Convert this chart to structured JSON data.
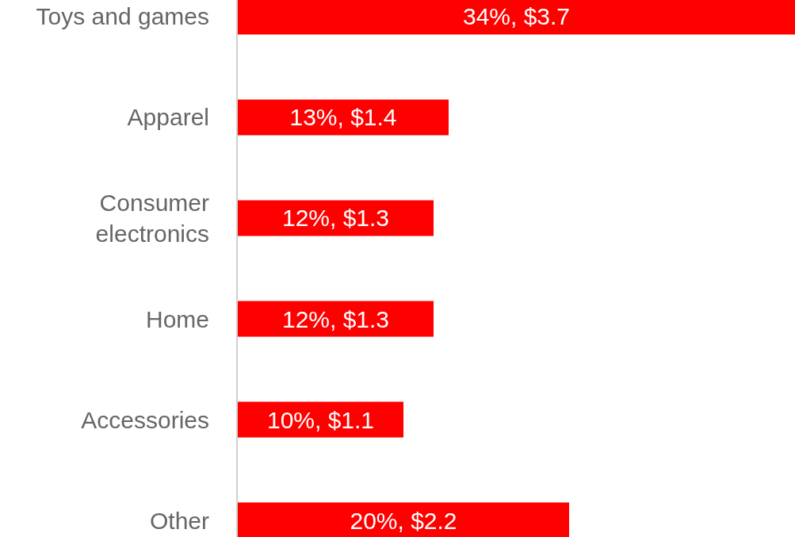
{
  "chart_data": {
    "type": "bar",
    "orientation": "horizontal",
    "categories": [
      "Toys and games",
      "Apparel",
      "Consumer electronics",
      "Home",
      "Accessories",
      "Other"
    ],
    "values": [
      3.7,
      1.4,
      1.3,
      1.3,
      1.1,
      2.2
    ],
    "value_labels": [
      "34%, $3.7",
      "13%, $1.4",
      "12%, $1.3",
      "12%, $1.3",
      "10%, $1.1",
      "20%, $2.2"
    ],
    "color": "#fe0000"
  }
}
